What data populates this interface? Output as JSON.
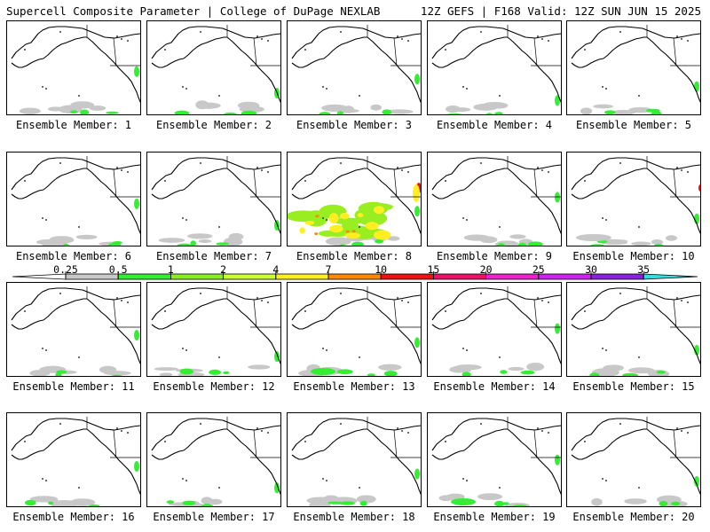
{
  "header": {
    "left": "Supercell Composite Parameter | College of DuPage NEXLAB",
    "right": "12Z GEFS | F168 Valid: 12Z SUN JUN 15 2025"
  },
  "members": [
    {
      "label": "Ensemble Member: 1",
      "n": 1
    },
    {
      "label": "Ensemble Member: 2",
      "n": 2
    },
    {
      "label": "Ensemble Member: 3",
      "n": 3
    },
    {
      "label": "Ensemble Member: 4",
      "n": 4
    },
    {
      "label": "Ensemble Member: 5",
      "n": 5
    },
    {
      "label": "Ensemble Member: 6",
      "n": 6
    },
    {
      "label": "Ensemble Member: 7",
      "n": 7
    },
    {
      "label": "Ensemble Member: 8",
      "n": 8
    },
    {
      "label": "Ensemble Member: 9",
      "n": 9
    },
    {
      "label": "Ensemble Member: 10",
      "n": 10
    },
    {
      "label": "Ensemble Member: 11",
      "n": 11
    },
    {
      "label": "Ensemble Member: 12",
      "n": 12
    },
    {
      "label": "Ensemble Member: 13",
      "n": 13
    },
    {
      "label": "Ensemble Member: 14",
      "n": 14
    },
    {
      "label": "Ensemble Member: 15",
      "n": 15
    },
    {
      "label": "Ensemble Member: 16",
      "n": 16
    },
    {
      "label": "Ensemble Member: 17",
      "n": 17
    },
    {
      "label": "Ensemble Member: 18",
      "n": 18
    },
    {
      "label": "Ensemble Member: 19",
      "n": 19
    },
    {
      "label": "Ensemble Member: 20",
      "n": 20
    }
  ],
  "colorbar": {
    "levels": [
      "0.25",
      "0.5",
      "1",
      "2",
      "4",
      "7",
      "10",
      "15",
      "20",
      "25",
      "30",
      "35"
    ],
    "colors": [
      "#c8c8c8",
      "#33ee33",
      "#88ee22",
      "#ccff33",
      "#ffee22",
      "#ff8800",
      "#ee1111",
      "#ee1166",
      "#ee22cc",
      "#cc22ee",
      "#8822dd",
      "#9966dd",
      "#33dddd"
    ]
  },
  "colors": {
    "low": "#c8c8c8",
    "green": "#33ee33",
    "lime": "#99ee22",
    "yellow": "#ffee22",
    "orange": "#ff8800",
    "red": "#ee1111"
  }
}
